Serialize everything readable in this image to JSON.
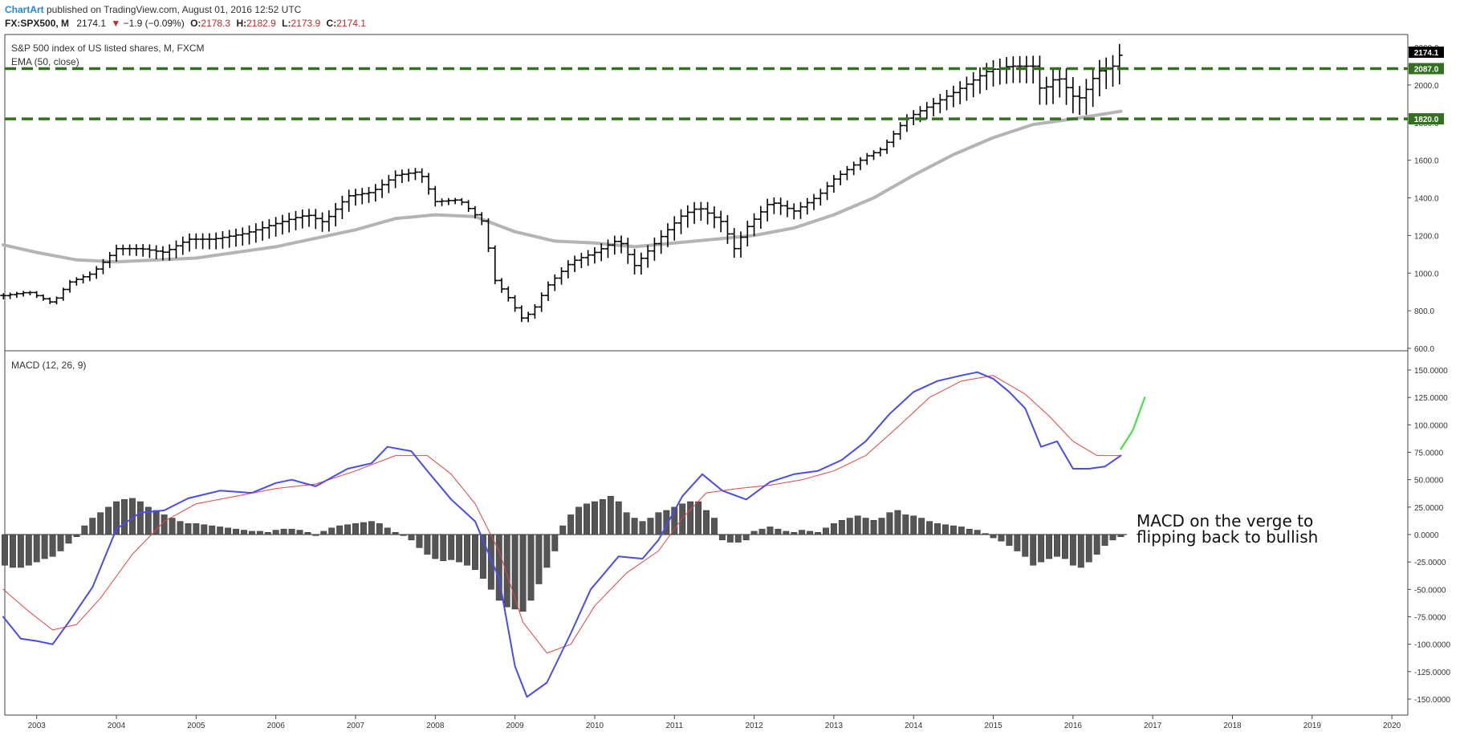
{
  "header": {
    "author": "ChartArt",
    "published": " published on TradingView.com, August 01, 2016 12:52 UTC",
    "symbol": "FX:SPX500, M",
    "last": "2174.1",
    "change": "−1.9 (−0.09%)",
    "o_label": "O:",
    "o_value": "2178.3",
    "h_label": "H:",
    "h_value": "2182.9",
    "l_label": "L:",
    "l_value": "2173.9",
    "c_label": "C:",
    "c_value": "2174.1"
  },
  "colors": {
    "bars": "#000000",
    "ema": "#b4b4b4",
    "level_line": "#33701f",
    "macd_line": "#4a4af5",
    "signal_line": "#f04040",
    "histogram": "#555555",
    "projection": "#33e633",
    "ohlc_value": "#c62828",
    "author": "#1e88e5"
  },
  "chart_data": [
    {
      "type": "ohlc",
      "title": "S&P 500 index of US listed shares, M, FXCM",
      "indicator": "EMA (50, close)",
      "x_range": [
        2002.6,
        2020.2
      ],
      "x_ticks": [
        "2003",
        "2004",
        "2005",
        "2006",
        "2007",
        "2008",
        "2009",
        "2010",
        "2011",
        "2012",
        "2013",
        "2014",
        "2015",
        "2016",
        "2017",
        "2018",
        "2019",
        "2020"
      ],
      "y_ticks": [
        "600.0",
        "800.0",
        "1000.0",
        "1200.0",
        "1400.0",
        "1600.0",
        "1800.0",
        "2000.0",
        "2200.0"
      ],
      "ylim": [
        600,
        2200
      ],
      "last_price_label": "2174.1",
      "levels": [
        {
          "value": 2087.0,
          "label": "2087.0"
        },
        {
          "value": 1820.0,
          "label": "1820.0"
        }
      ],
      "close_points": [
        [
          2002.58,
          880
        ],
        [
          2002.9,
          900
        ],
        [
          2003.2,
          840
        ],
        [
          2003.4,
          950
        ],
        [
          2003.7,
          1000
        ],
        [
          2004.0,
          1130
        ],
        [
          2004.3,
          1130
        ],
        [
          2004.6,
          1110
        ],
        [
          2004.9,
          1180
        ],
        [
          2005.2,
          1180
        ],
        [
          2005.6,
          1210
        ],
        [
          2005.9,
          1250
        ],
        [
          2006.2,
          1290
        ],
        [
          2006.4,
          1310
        ],
        [
          2006.6,
          1270
        ],
        [
          2006.9,
          1410
        ],
        [
          2007.2,
          1430
        ],
        [
          2007.5,
          1520
        ],
        [
          2007.8,
          1540
        ],
        [
          2008.0,
          1380
        ],
        [
          2008.3,
          1390
        ],
        [
          2008.6,
          1270
        ],
        [
          2008.75,
          960
        ],
        [
          2008.9,
          880
        ],
        [
          2009.1,
          750
        ],
        [
          2009.25,
          820
        ],
        [
          2009.4,
          930
        ],
        [
          2009.7,
          1060
        ],
        [
          2010.0,
          1110
        ],
        [
          2010.3,
          1180
        ],
        [
          2010.5,
          1040
        ],
        [
          2010.8,
          1180
        ],
        [
          2011.1,
          1310
        ],
        [
          2011.3,
          1350
        ],
        [
          2011.6,
          1270
        ],
        [
          2011.75,
          1130
        ],
        [
          2011.9,
          1240
        ],
        [
          2012.2,
          1380
        ],
        [
          2012.5,
          1330
        ],
        [
          2012.8,
          1410
        ],
        [
          2013.0,
          1500
        ],
        [
          2013.4,
          1620
        ],
        [
          2013.6,
          1660
        ],
        [
          2013.9,
          1820
        ],
        [
          2014.2,
          1890
        ],
        [
          2014.5,
          1960
        ],
        [
          2014.8,
          2040
        ],
        [
          2014.95,
          2080
        ],
        [
          2015.2,
          2100
        ],
        [
          2015.5,
          2100
        ],
        [
          2015.6,
          1960
        ],
        [
          2015.8,
          2050
        ],
        [
          2016.0,
          1940
        ],
        [
          2016.1,
          1930
        ],
        [
          2016.3,
          2070
        ],
        [
          2016.5,
          2100
        ],
        [
          2016.6,
          2170
        ]
      ],
      "ema_points": [
        [
          2002.58,
          1150
        ],
        [
          2003.0,
          1110
        ],
        [
          2003.5,
          1070
        ],
        [
          2004.0,
          1060
        ],
        [
          2005.0,
          1080
        ],
        [
          2006.0,
          1140
        ],
        [
          2007.0,
          1230
        ],
        [
          2007.5,
          1290
        ],
        [
          2008.0,
          1310
        ],
        [
          2008.5,
          1300
        ],
        [
          2009.0,
          1220
        ],
        [
          2009.5,
          1170
        ],
        [
          2010.0,
          1160
        ],
        [
          2010.5,
          1140
        ],
        [
          2011.0,
          1160
        ],
        [
          2011.5,
          1180
        ],
        [
          2012.0,
          1200
        ],
        [
          2012.5,
          1240
        ],
        [
          2013.0,
          1310
        ],
        [
          2013.5,
          1400
        ],
        [
          2014.0,
          1520
        ],
        [
          2014.5,
          1630
        ],
        [
          2015.0,
          1720
        ],
        [
          2015.5,
          1790
        ],
        [
          2016.0,
          1820
        ],
        [
          2016.6,
          1860
        ]
      ]
    },
    {
      "type": "macd",
      "title": "MACD (12, 26, 9)",
      "x_range": [
        2002.6,
        2020.2
      ],
      "ylim": [
        -150,
        150
      ],
      "y_ticks": [
        "150.0000",
        "125.0000",
        "100.0000",
        "75.0000",
        "50.0000",
        "25.0000",
        "0.0000",
        "-25.0000",
        "-50.0000",
        "-75.0000",
        "-100.0000",
        "-125.0000",
        "-150.0000"
      ],
      "annotation": "MACD on the verge to flipping back to bullish",
      "macd_points": [
        [
          2002.58,
          -75
        ],
        [
          2002.8,
          -95
        ],
        [
          2003.0,
          -97
        ],
        [
          2003.2,
          -100
        ],
        [
          2003.4,
          -80
        ],
        [
          2003.7,
          -48
        ],
        [
          2004.0,
          5
        ],
        [
          2004.3,
          20
        ],
        [
          2004.6,
          22
        ],
        [
          2004.9,
          33
        ],
        [
          2005.3,
          40
        ],
        [
          2005.7,
          38
        ],
        [
          2006.0,
          47
        ],
        [
          2006.2,
          50
        ],
        [
          2006.5,
          44
        ],
        [
          2006.9,
          60
        ],
        [
          2007.2,
          65
        ],
        [
          2007.4,
          80
        ],
        [
          2007.7,
          76
        ],
        [
          2007.9,
          58
        ],
        [
          2008.2,
          32
        ],
        [
          2008.5,
          12
        ],
        [
          2008.8,
          -40
        ],
        [
          2009.0,
          -120
        ],
        [
          2009.15,
          -148
        ],
        [
          2009.4,
          -135
        ],
        [
          2009.7,
          -90
        ],
        [
          2009.95,
          -50
        ],
        [
          2010.3,
          -20
        ],
        [
          2010.6,
          -22
        ],
        [
          2010.8,
          -5
        ],
        [
          2011.1,
          35
        ],
        [
          2011.35,
          55
        ],
        [
          2011.6,
          40
        ],
        [
          2011.9,
          32
        ],
        [
          2012.2,
          48
        ],
        [
          2012.5,
          55
        ],
        [
          2012.8,
          58
        ],
        [
          2013.1,
          68
        ],
        [
          2013.4,
          85
        ],
        [
          2013.7,
          110
        ],
        [
          2014.0,
          130
        ],
        [
          2014.3,
          140
        ],
        [
          2014.6,
          145
        ],
        [
          2014.8,
          148
        ],
        [
          2015.0,
          142
        ],
        [
          2015.2,
          130
        ],
        [
          2015.4,
          115
        ],
        [
          2015.6,
          80
        ],
        [
          2015.8,
          85
        ],
        [
          2016.0,
          60
        ],
        [
          2016.2,
          60
        ],
        [
          2016.4,
          62
        ],
        [
          2016.6,
          72
        ]
      ],
      "signal_points": [
        [
          2002.58,
          -50
        ],
        [
          2002.9,
          -70
        ],
        [
          2003.2,
          -87
        ],
        [
          2003.5,
          -82
        ],
        [
          2003.8,
          -58
        ],
        [
          2004.2,
          -18
        ],
        [
          2004.6,
          12
        ],
        [
          2005.0,
          28
        ],
        [
          2005.5,
          35
        ],
        [
          2006.0,
          42
        ],
        [
          2006.5,
          46
        ],
        [
          2007.0,
          58
        ],
        [
          2007.5,
          72
        ],
        [
          2007.9,
          72
        ],
        [
          2008.2,
          55
        ],
        [
          2008.5,
          28
        ],
        [
          2008.8,
          -15
        ],
        [
          2009.1,
          -80
        ],
        [
          2009.4,
          -108
        ],
        [
          2009.7,
          -100
        ],
        [
          2010.0,
          -65
        ],
        [
          2010.4,
          -35
        ],
        [
          2010.8,
          -15
        ],
        [
          2011.1,
          15
        ],
        [
          2011.4,
          38
        ],
        [
          2011.8,
          42
        ],
        [
          2012.2,
          45
        ],
        [
          2012.6,
          50
        ],
        [
          2013.0,
          58
        ],
        [
          2013.4,
          72
        ],
        [
          2013.8,
          98
        ],
        [
          2014.2,
          125
        ],
        [
          2014.6,
          140
        ],
        [
          2015.0,
          145
        ],
        [
          2015.4,
          128
        ],
        [
          2015.7,
          108
        ],
        [
          2016.0,
          85
        ],
        [
          2016.3,
          72
        ],
        [
          2016.6,
          72
        ]
      ],
      "histogram": [
        [
          2002.6,
          -28
        ],
        [
          2002.7,
          -30
        ],
        [
          2002.8,
          -30
        ],
        [
          2002.9,
          -28
        ],
        [
          2003.0,
          -25
        ],
        [
          2003.1,
          -22
        ],
        [
          2003.2,
          -20
        ],
        [
          2003.3,
          -15
        ],
        [
          2003.4,
          -8
        ],
        [
          2003.5,
          -2
        ],
        [
          2003.6,
          8
        ],
        [
          2003.7,
          15
        ],
        [
          2003.8,
          20
        ],
        [
          2003.9,
          25
        ],
        [
          2004.0,
          30
        ],
        [
          2004.1,
          32
        ],
        [
          2004.2,
          33
        ],
        [
          2004.3,
          30
        ],
        [
          2004.4,
          25
        ],
        [
          2004.5,
          22
        ],
        [
          2004.6,
          18
        ],
        [
          2004.7,
          15
        ],
        [
          2004.8,
          12
        ],
        [
          2004.9,
          10
        ],
        [
          2005.0,
          10
        ],
        [
          2005.1,
          9
        ],
        [
          2005.2,
          8
        ],
        [
          2005.3,
          7
        ],
        [
          2005.4,
          6
        ],
        [
          2005.5,
          5
        ],
        [
          2005.6,
          4
        ],
        [
          2005.7,
          3
        ],
        [
          2005.8,
          3
        ],
        [
          2005.9,
          2
        ],
        [
          2006.0,
          4
        ],
        [
          2006.1,
          5
        ],
        [
          2006.2,
          5
        ],
        [
          2006.3,
          4
        ],
        [
          2006.4,
          2
        ],
        [
          2006.5,
          -1
        ],
        [
          2006.6,
          3
        ],
        [
          2006.7,
          6
        ],
        [
          2006.8,
          8
        ],
        [
          2006.9,
          9
        ],
        [
          2007.0,
          10
        ],
        [
          2007.1,
          11
        ],
        [
          2007.2,
          12
        ],
        [
          2007.3,
          10
        ],
        [
          2007.4,
          6
        ],
        [
          2007.5,
          2
        ],
        [
          2007.6,
          -1
        ],
        [
          2007.7,
          -5
        ],
        [
          2007.8,
          -12
        ],
        [
          2007.9,
          -18
        ],
        [
          2008.0,
          -22
        ],
        [
          2008.1,
          -24
        ],
        [
          2008.2,
          -23
        ],
        [
          2008.3,
          -25
        ],
        [
          2008.4,
          -28
        ],
        [
          2008.5,
          -32
        ],
        [
          2008.6,
          -40
        ],
        [
          2008.7,
          -50
        ],
        [
          2008.8,
          -60
        ],
        [
          2008.9,
          -66
        ],
        [
          2009.0,
          -68
        ],
        [
          2009.1,
          -70
        ],
        [
          2009.2,
          -60
        ],
        [
          2009.3,
          -45
        ],
        [
          2009.4,
          -30
        ],
        [
          2009.5,
          -15
        ],
        [
          2009.6,
          8
        ],
        [
          2009.7,
          18
        ],
        [
          2009.8,
          25
        ],
        [
          2009.9,
          28
        ],
        [
          2010.0,
          30
        ],
        [
          2010.1,
          32
        ],
        [
          2010.2,
          35
        ],
        [
          2010.3,
          30
        ],
        [
          2010.4,
          20
        ],
        [
          2010.5,
          15
        ],
        [
          2010.6,
          12
        ],
        [
          2010.7,
          15
        ],
        [
          2010.8,
          20
        ],
        [
          2010.9,
          22
        ],
        [
          2011.0,
          25
        ],
        [
          2011.1,
          28
        ],
        [
          2011.2,
          30
        ],
        [
          2011.3,
          30
        ],
        [
          2011.4,
          22
        ],
        [
          2011.5,
          15
        ],
        [
          2011.6,
          -5
        ],
        [
          2011.7,
          -7
        ],
        [
          2011.8,
          -7
        ],
        [
          2011.9,
          -5
        ],
        [
          2012.0,
          3
        ],
        [
          2012.1,
          5
        ],
        [
          2012.2,
          7
        ],
        [
          2012.3,
          5
        ],
        [
          2012.4,
          3
        ],
        [
          2012.5,
          2
        ],
        [
          2012.6,
          4
        ],
        [
          2012.7,
          3
        ],
        [
          2012.8,
          2
        ],
        [
          2012.9,
          6
        ],
        [
          2013.0,
          10
        ],
        [
          2013.1,
          13
        ],
        [
          2013.2,
          15
        ],
        [
          2013.3,
          17
        ],
        [
          2013.4,
          15
        ],
        [
          2013.5,
          13
        ],
        [
          2013.6,
          15
        ],
        [
          2013.7,
          20
        ],
        [
          2013.8,
          22
        ],
        [
          2013.9,
          18
        ],
        [
          2014.0,
          17
        ],
        [
          2014.1,
          15
        ],
        [
          2014.2,
          12
        ],
        [
          2014.3,
          10
        ],
        [
          2014.4,
          9
        ],
        [
          2014.5,
          8
        ],
        [
          2014.6,
          7
        ],
        [
          2014.7,
          5
        ],
        [
          2014.8,
          4
        ],
        [
          2014.9,
          1
        ],
        [
          2015.0,
          -3
        ],
        [
          2015.1,
          -6
        ],
        [
          2015.2,
          -10
        ],
        [
          2015.3,
          -15
        ],
        [
          2015.4,
          -20
        ],
        [
          2015.5,
          -28
        ],
        [
          2015.6,
          -25
        ],
        [
          2015.7,
          -22
        ],
        [
          2015.8,
          -20
        ],
        [
          2015.9,
          -22
        ],
        [
          2016.0,
          -28
        ],
        [
          2016.1,
          -30
        ],
        [
          2016.2,
          -25
        ],
        [
          2016.3,
          -18
        ],
        [
          2016.4,
          -10
        ],
        [
          2016.5,
          -5
        ],
        [
          2016.6,
          -2
        ]
      ],
      "projection_points": [
        [
          2016.6,
          78
        ],
        [
          2016.75,
          95
        ],
        [
          2016.9,
          125
        ]
      ]
    }
  ]
}
